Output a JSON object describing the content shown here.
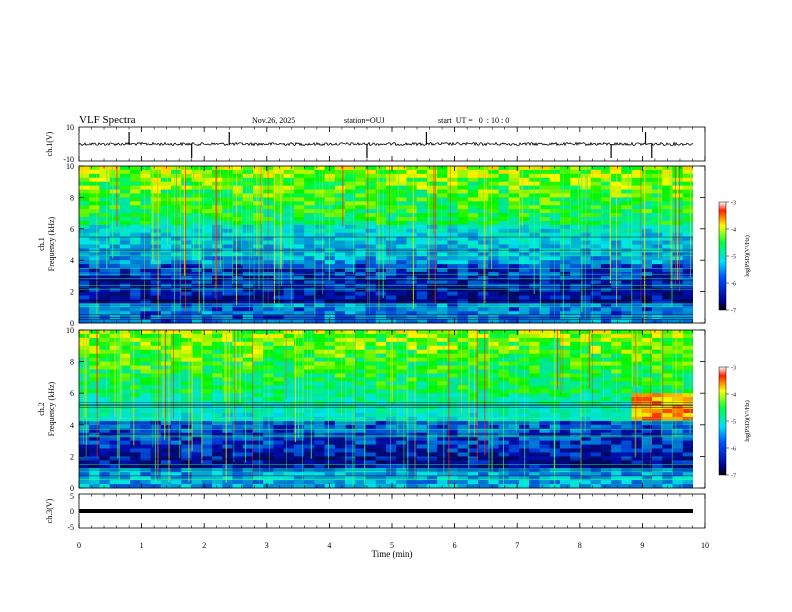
{
  "header": {
    "title": "VLF Spectra",
    "date": "Nov.26, 2025",
    "station": "station=OUJ",
    "start_ut": "start  UT =   0  : 10 : 0"
  },
  "chart_data": [
    {
      "type": "line",
      "panel": "ch1-waveform",
      "ylabel": "ch.1(V)",
      "ytick_labels": [
        "10",
        "-10"
      ],
      "ylim": [
        -10,
        10
      ],
      "xlim": [
        0,
        10
      ],
      "baseline_value": 0,
      "spikes_min": [
        0.8,
        1.8,
        2.4,
        4.6,
        5.55,
        8.5,
        9.05,
        9.15
      ]
    },
    {
      "type": "heatmap",
      "panel": "ch1-spectrogram",
      "ylabel_top": "ch.1",
      "ylabel": "Frequency (kHz)",
      "ytick_labels": [
        "0",
        "2",
        "4",
        "6",
        "8",
        "10"
      ],
      "ylim": [
        0,
        10
      ],
      "xlim": [
        0,
        10
      ],
      "colorbar": {
        "label": "log(PSD)(V²/Hz)",
        "tick_labels": [
          "-3",
          "-4",
          "-5",
          "-6",
          "-7"
        ],
        "range": [
          -7,
          -3
        ]
      }
    },
    {
      "type": "heatmap",
      "panel": "ch2-spectrogram",
      "ylabel_top": "ch.2",
      "ylabel": "Frequency (kHz)",
      "ytick_labels": [
        "0",
        "2",
        "4",
        "6",
        "8",
        "10"
      ],
      "ylim": [
        0,
        10
      ],
      "xlim": [
        0,
        10
      ],
      "colorbar": {
        "label": "log(PSD)(V²/Hz)",
        "tick_labels": [
          "-3",
          "-4",
          "-5",
          "-6",
          "-7"
        ],
        "range": [
          -7,
          -3
        ]
      }
    },
    {
      "type": "line",
      "panel": "ch3-waveform",
      "ylabel": "ch.3(V)",
      "ytick_labels": [
        "5",
        "0",
        "-5"
      ],
      "ylim": [
        -5,
        5
      ],
      "xlim": [
        0,
        10
      ],
      "baseline_value": 0
    }
  ],
  "xaxis": {
    "label": "Time (min)",
    "tick_labels": [
      "0",
      "1",
      "2",
      "3",
      "4",
      "5",
      "6",
      "7",
      "8",
      "9",
      "10"
    ],
    "range": [
      0,
      10
    ]
  },
  "colors": {
    "spectrogram_low": "#000080",
    "spectrogram_mid": "#00c8ff",
    "spectrogram_high": "#ff0000"
  }
}
